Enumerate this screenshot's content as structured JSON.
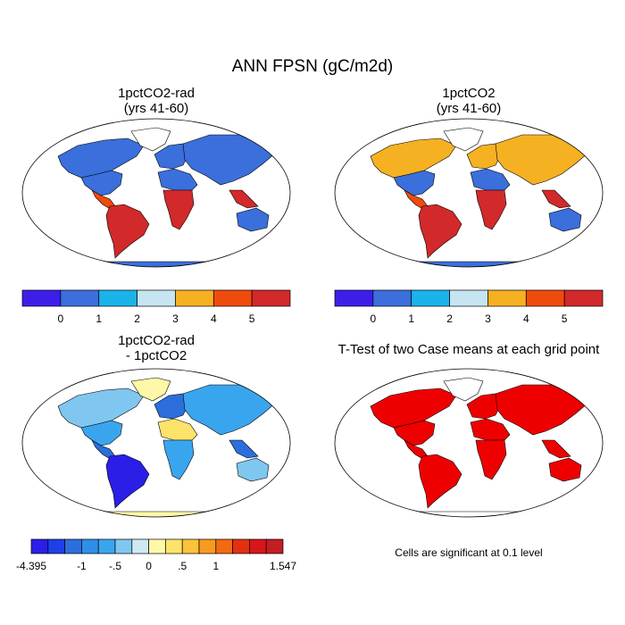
{
  "figure": {
    "title": "ANN FPSN (gC/m2d)",
    "note": "Cells are significant at 0.1 level"
  },
  "chart_data": [
    {
      "type": "heatmap",
      "map": "world",
      "title": "1pctCO2-rad",
      "subtitle": "(yrs 41-60)",
      "colorbar": {
        "tick_labels": [
          "0",
          "1",
          "2",
          "3",
          "4",
          "5"
        ],
        "colors": [
          "#3d1ee8",
          "#3a6fdc",
          "#1ab3ea",
          "#c6e4f2",
          "#f5b122",
          "#f04b0e",
          "#d2292a"
        ]
      },
      "continents": {
        "north_america_north": "#3a6fdc",
        "north_america_south": "#3a6fdc",
        "greenland": "#ffffff",
        "central_america": "#f04b0e",
        "south_america": "#d2292a",
        "europe": "#3a6fdc",
        "asia": "#3a6fdc",
        "africa": "#3a6fdc",
        "africa_tropics": "#d2292a",
        "se_asia": "#d2292a",
        "australia": "#3a6fdc",
        "antarctica": "#3a6fdc"
      }
    },
    {
      "type": "heatmap",
      "map": "world",
      "title": "1pctCO2",
      "subtitle": "(yrs 41-60)",
      "colorbar": {
        "tick_labels": [
          "0",
          "1",
          "2",
          "3",
          "4",
          "5"
        ],
        "colors": [
          "#3d1ee8",
          "#3a6fdc",
          "#1ab3ea",
          "#c6e4f2",
          "#f5b122",
          "#f04b0e",
          "#d2292a"
        ]
      },
      "continents": {
        "north_america_north": "#f5b122",
        "north_america_south": "#3a6fdc",
        "greenland": "#ffffff",
        "central_america": "#f04b0e",
        "south_america": "#d2292a",
        "europe": "#f5b122",
        "asia": "#f5b122",
        "africa": "#3a6fdc",
        "africa_tropics": "#d2292a",
        "se_asia": "#d2292a",
        "australia": "#3a6fdc",
        "antarctica": "#3a6fdc"
      }
    },
    {
      "type": "heatmap",
      "map": "world",
      "title": "1pctCO2-rad",
      "subtitle": "- 1pctCO2",
      "colorbar": {
        "tick_labels": [
          "-4.395",
          "-1",
          "-.5",
          "0",
          ".5",
          "1",
          "1.547"
        ],
        "colors": [
          "#2b1ee6",
          "#1f3fe8",
          "#2c6fdc",
          "#2f8fe8",
          "#3aa5ef",
          "#7fc7f0",
          "#cfe9f4",
          "#fff8a8",
          "#fde36a",
          "#fbc23c",
          "#f99a20",
          "#f36a12",
          "#e33010",
          "#d8151a",
          "#c41d22"
        ]
      },
      "continents": {
        "north_america_north": "#7fc7f0",
        "north_america_south": "#3aa5ef",
        "greenland": "#fff8a8",
        "central_america": "#2c6fdc",
        "south_america": "#2b1ee6",
        "europe": "#2c6fdc",
        "asia": "#3aa5ef",
        "africa": "#fde36a",
        "africa_tropics": "#3aa5ef",
        "se_asia": "#2c6fdc",
        "australia": "#7fc7f0",
        "antarctica": "#fff8a8"
      }
    },
    {
      "type": "heatmap",
      "map": "world",
      "title": "T-Test of two Case means at each grid point",
      "subtitle": "",
      "significant_color": "#ee0000",
      "continents": {
        "north_america_north": "#ee0000",
        "north_america_south": "#ee0000",
        "greenland": "#ffffff",
        "central_america": "#ee0000",
        "south_america": "#ee0000",
        "europe": "#ee0000",
        "asia": "#ee0000",
        "africa": "#ee0000",
        "africa_tropics": "#ee0000",
        "se_asia": "#ee0000",
        "australia": "#ee0000",
        "antarctica": "#ffffff"
      }
    }
  ]
}
